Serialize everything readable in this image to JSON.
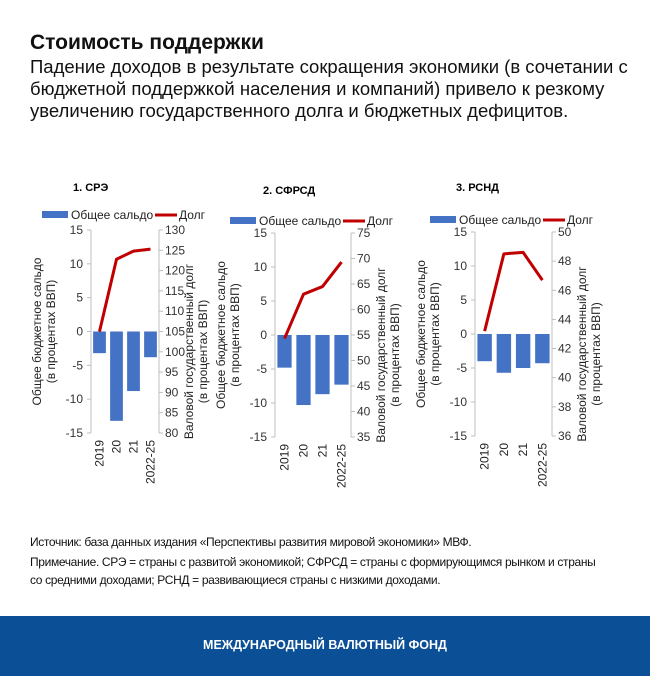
{
  "header": {
    "title": "Стоимость поддержки",
    "subtitle": "Падение доходов в результате сокращения экономики (в сочетании с бюджетной поддержкой населения и компаний) привело к резкому увеличению государственного долга и бюджетных дефицитов."
  },
  "colors": {
    "balance": "#4472c4",
    "debt": "#c00000",
    "footer": "#0b4f96"
  },
  "chart_data": [
    {
      "type": "bar+line",
      "title": "1. СРЭ",
      "categories": [
        "2019",
        "20",
        "21",
        "2022-25"
      ],
      "series": [
        {
          "name": "Общее сальдо",
          "type": "bar",
          "axis": "left",
          "values": [
            -3.2,
            -13.2,
            -8.8,
            -3.8
          ]
        },
        {
          "name": "Долг",
          "type": "line",
          "axis": "right",
          "values": [
            105,
            122.8,
            124.8,
            125.3
          ]
        }
      ],
      "ylabel": "Общее бюджетное сальдо\n(в процентах ВВП)",
      "ylabel_right": "Валовой государственный долг\n(в процентах ВВП)",
      "ylim": [
        -15,
        15
      ],
      "yticks": [
        15,
        10,
        5,
        0,
        -5,
        -10,
        -15
      ],
      "ylim_right": [
        80,
        130
      ],
      "yticks_right": [
        130,
        125,
        120,
        115,
        110,
        105,
        100,
        95,
        90,
        85,
        80
      ],
      "legend": "top",
      "grid": false
    },
    {
      "type": "bar+line",
      "title": "2. СФРСД",
      "categories": [
        "2019",
        "20",
        "21",
        "2022-25"
      ],
      "series": [
        {
          "name": "Общее сальдо",
          "type": "bar",
          "axis": "left",
          "values": [
            -4.8,
            -10.3,
            -8.7,
            -7.3
          ]
        },
        {
          "name": "Долг",
          "type": "line",
          "axis": "right",
          "values": [
            54.3,
            63,
            64.5,
            69.3
          ]
        }
      ],
      "ylabel": "Общее бюджетное сальдо\n(в процентах ВВП)",
      "ylabel_right": "Валовой государственный долг\n(в процентах ВВП)",
      "ylim": [
        -15,
        15
      ],
      "yticks": [
        15,
        10,
        5,
        0,
        -5,
        -10,
        -15
      ],
      "ylim_right": [
        35,
        75
      ],
      "yticks_right": [
        75,
        70,
        65,
        60,
        55,
        50,
        45,
        40,
        35
      ],
      "legend": "top",
      "grid": false
    },
    {
      "type": "bar+line",
      "title": "3. РСНД",
      "categories": [
        "2019",
        "20",
        "21",
        "2022-25"
      ],
      "series": [
        {
          "name": "Общее сальдо",
          "type": "bar",
          "axis": "left",
          "values": [
            -4.0,
            -5.7,
            -5.0,
            -4.3
          ]
        },
        {
          "name": "Долг",
          "type": "line",
          "axis": "right",
          "values": [
            43.2,
            48.5,
            48.6,
            46.7
          ]
        }
      ],
      "ylabel": "Общее бюджетное сальдо\n(в процентах ВВП)",
      "ylabel_right": "Валовой государственный долг\n(в процентах ВВП)",
      "ylim": [
        -15,
        15
      ],
      "yticks": [
        15,
        10,
        5,
        0,
        -5,
        -10,
        -15
      ],
      "ylim_right": [
        36,
        50
      ],
      "yticks_right": [
        50,
        48,
        46,
        44,
        42,
        40,
        38,
        36
      ],
      "legend": "top",
      "grid": false
    }
  ],
  "notes": {
    "source": "Источник: база данных издания «Перспективы развития мировой экономики» МВФ.",
    "note_line1": "Примечание. СРЭ = страны с развитой экономикой; СФРСД = страны с формирующимся рынком и страны",
    "note_line2": "со средними доходами; РСНД = развивающиеся страны с низкими доходами."
  },
  "footer": {
    "label": "МЕЖДУНАРОДНЫЙ ВАЛЮТНЫЙ ФОНД"
  }
}
